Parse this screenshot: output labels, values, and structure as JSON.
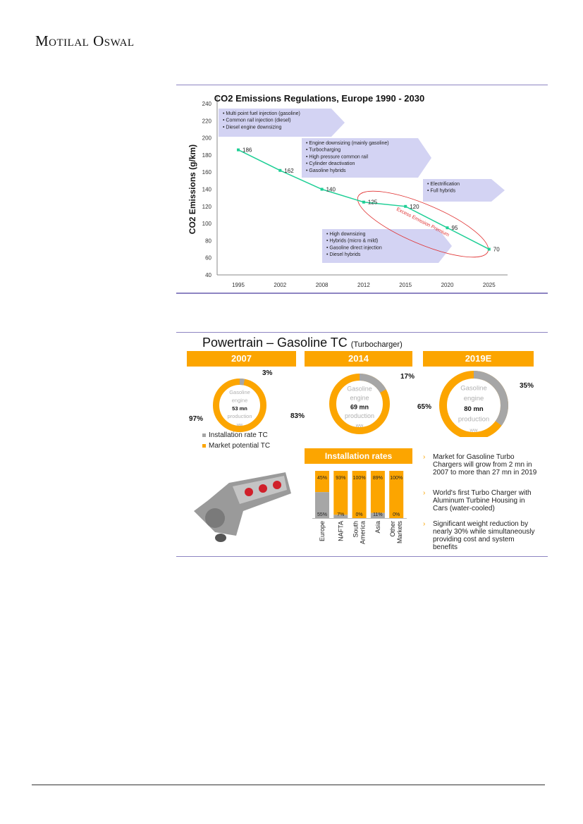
{
  "header": {
    "brand": "Motilal Oswal"
  },
  "chart_data": [
    {
      "type": "line",
      "title": "CO2 Emissions Regulations, Europe 1990 - 2030",
      "ylabel": "CO2 Emissions (g/km)",
      "xlabel": "",
      "categories": [
        "1995",
        "2002",
        "2008",
        "2012",
        "2015",
        "2020",
        "2025"
      ],
      "values": [
        186,
        162,
        140,
        125,
        120,
        95,
        70
      ],
      "ylim": [
        40,
        240
      ],
      "yticks": [
        40,
        60,
        80,
        100,
        120,
        140,
        160,
        180,
        200,
        220,
        240
      ],
      "series_color": "#1fcf96",
      "callouts": [
        {
          "items": [
            "Multi point fuel injection (gasoline)",
            "Common rail injection (diesel)",
            "Diesel engine downsizing"
          ]
        },
        {
          "items": [
            "Engine downsizing (mainly gasoline)",
            "Turbocharging",
            "High pressure common rail",
            "Cylinder deactivation",
            "Gasoline hybrids"
          ]
        },
        {
          "items": [
            "Electrification",
            "Full hybrids"
          ]
        },
        {
          "items": [
            "High downsizing",
            "Hybrids (micro & mild)",
            "Gasoline direct injection",
            "Diesel hybrids"
          ]
        }
      ],
      "annotation": "Excess Emission Premium"
    },
    {
      "type": "pie",
      "title": "Powertrain – Gasoline TC",
      "subtitle": "(Turbocharger)",
      "donuts": [
        {
          "year": "2007",
          "installation_pct": 3,
          "potential_pct": 97,
          "center": [
            "Gasoline",
            "engine",
            "53 mn",
            "production",
            "ww"
          ]
        },
        {
          "year": "2014",
          "installation_pct": 17,
          "potential_pct": 83,
          "center": [
            "Gasoline",
            "engine",
            "69 mn",
            "production",
            "ww"
          ]
        },
        {
          "year": "2019E",
          "installation_pct": 35,
          "potential_pct": 65,
          "center": [
            "Gasoline",
            "engine",
            "80 mn",
            "production",
            "ww"
          ]
        }
      ],
      "legend": [
        {
          "label": "Installation rate TC",
          "color": "#a6a6a6"
        },
        {
          "label": "Market potential TC",
          "color": "#fca500"
        }
      ]
    },
    {
      "type": "bar",
      "title": "Installation rates",
      "stacked": true,
      "categories": [
        "Europe",
        "NAFTA",
        "South America",
        "Asia",
        "Other Markets"
      ],
      "series": [
        {
          "name": "Installation rate TC",
          "values": [
            55,
            7,
            0,
            11,
            0
          ],
          "color": "#a6a6a6"
        },
        {
          "name": "Market potential TC",
          "values": [
            45,
            93,
            100,
            89,
            100
          ],
          "color": "#fca500"
        }
      ]
    }
  ],
  "bullets": [
    "Market for Gasoline Turbo Chargers will grow from 2 mn in 2007 to more than 27 mn in 2019",
    "World's first Turbo Charger with Aluminum Turbine Housing in Cars (water-cooled)",
    "Significant weight reduction by nearly 30% while simultaneously providing cost and system benefits"
  ],
  "bullet_glyph": "›"
}
